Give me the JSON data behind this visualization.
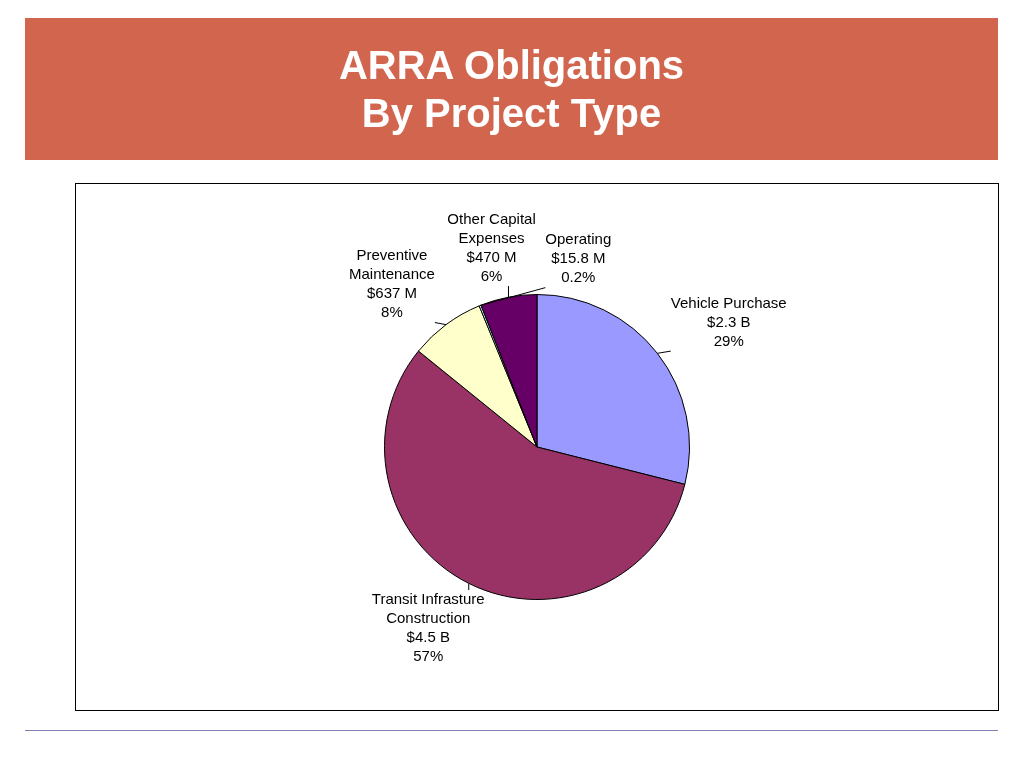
{
  "chart_data": {
    "type": "pie",
    "title": "ARRA Obligations By Project Type",
    "categories": [
      "Vehicle Purchase",
      "Transit Infrasture Construction",
      "Preventive Maintenance",
      "Operating",
      "Other Capital Expenses"
    ],
    "values": [
      29,
      57,
      8,
      0.2,
      6
    ],
    "value_labels": [
      "$2.3 B\n29%",
      "$4.5 B\n57%",
      "$637 M\n8%",
      "$15.8 M\n0.2%",
      "$470 M\n6%"
    ],
    "colors": [
      "#9999ff",
      "#993366",
      "#ffffcc",
      "#ccffff",
      "#660066"
    ],
    "legend": false
  }
}
